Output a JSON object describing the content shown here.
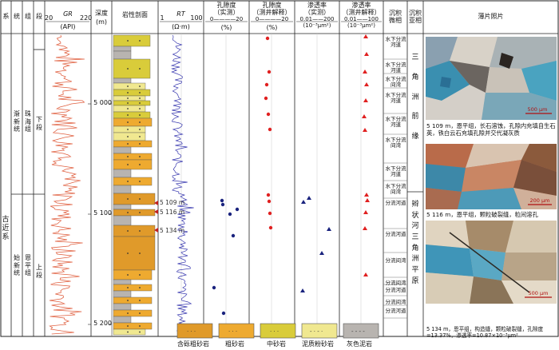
{
  "headers": {
    "system": "系",
    "series": "统",
    "group": "组",
    "member": "段",
    "gr_title": "GR",
    "gr_unit": "(API)",
    "gr_min": "20",
    "gr_max": "220",
    "depth": "深度",
    "depth_unit": "(m)",
    "lithology": "岩性剖面",
    "rt_title": "RT",
    "rt_unit": "(Ω·m)",
    "rt_min": "1",
    "rt_max": "100",
    "por_meas": "孔隙度",
    "por_meas_sub": "（实测）",
    "por_meas_range": "0————20",
    "por_meas_unit": "(%)",
    "por_log": "孔隙度",
    "por_log_sub": "（测井解释）",
    "por_log_range": "0————20",
    "por_log_unit": "(%)",
    "perm_meas": "渗透率",
    "perm_meas_sub": "（实测）",
    "perm_meas_range": "0.01——200",
    "perm_meas_unit": "(10⁻³μm²)",
    "perm_log": "渗透率",
    "perm_log_sub": "（测井解释）",
    "perm_log_range": "0.01——100",
    "perm_log_unit": "(10⁻³μm²)",
    "micro_facies": "沉积",
    "micro_facies_b": "微相",
    "sub_facies": "沉积",
    "sub_facies_b": "亚相",
    "thin_section": "薄片照片"
  },
  "strat": {
    "system": "古近系",
    "series_upper": "渐新统",
    "series_lower": "始新统",
    "group_upper": "珠海组",
    "group_lower": "恩平组",
    "member_upper": "下段",
    "member_lower": "上段"
  },
  "depths": [
    "5 000",
    "5 100",
    "5 200"
  ],
  "annotations": [
    "5 109 m",
    "5 116 m",
    "5 134 m"
  ],
  "micro_facies": [
    "水下分流河道",
    "水下分流河道",
    "水下分流间湾",
    "水下分流河道",
    "水下分流河道",
    "水下分流间湾",
    "水下分流河道",
    "水下分流间湾",
    "分流河道",
    "分流间湾",
    "分流河道",
    "分流间湾",
    "分流河道",
    "分流间湾",
    "分流河道"
  ],
  "sub_facies": {
    "upper": "三角洲前缘",
    "lower": "辫状河三角洲平原"
  },
  "photos": [
    {
      "scale": "500 μm",
      "caption": "5 109 m，恩平组，长石溶蚀，孔隙内充填自生石英，铁白云石充填孔隙并交代凝灰质"
    },
    {
      "scale": "200 μm",
      "caption": "5 116 m，恩平组，颗粒破裂缝，粒间溶孔"
    },
    {
      "scale": "500 μm",
      "caption": "5 134 m，恩平组，构造缝，颗粒破裂缝，孔隙度=13.37%，渗透率=10.87×10⁻³μm²"
    }
  ],
  "legend": [
    "含砾粗砂岩",
    "粗砂岩",
    "中砂岩",
    "泥质粉砂岩",
    "灰色泥岩"
  ],
  "colors": {
    "gr": "#e06040",
    "rt": "#3a3ab0",
    "por_log": "#e02020",
    "meas": "#1a237e",
    "perm_log": "#e02020",
    "pebbly_coarse": "#e09a2a",
    "coarse": "#eeaa30",
    "medium": "#d9cc3a",
    "muddy_silt": "#f0e890",
    "mudstone": "#b8b4b0"
  }
}
